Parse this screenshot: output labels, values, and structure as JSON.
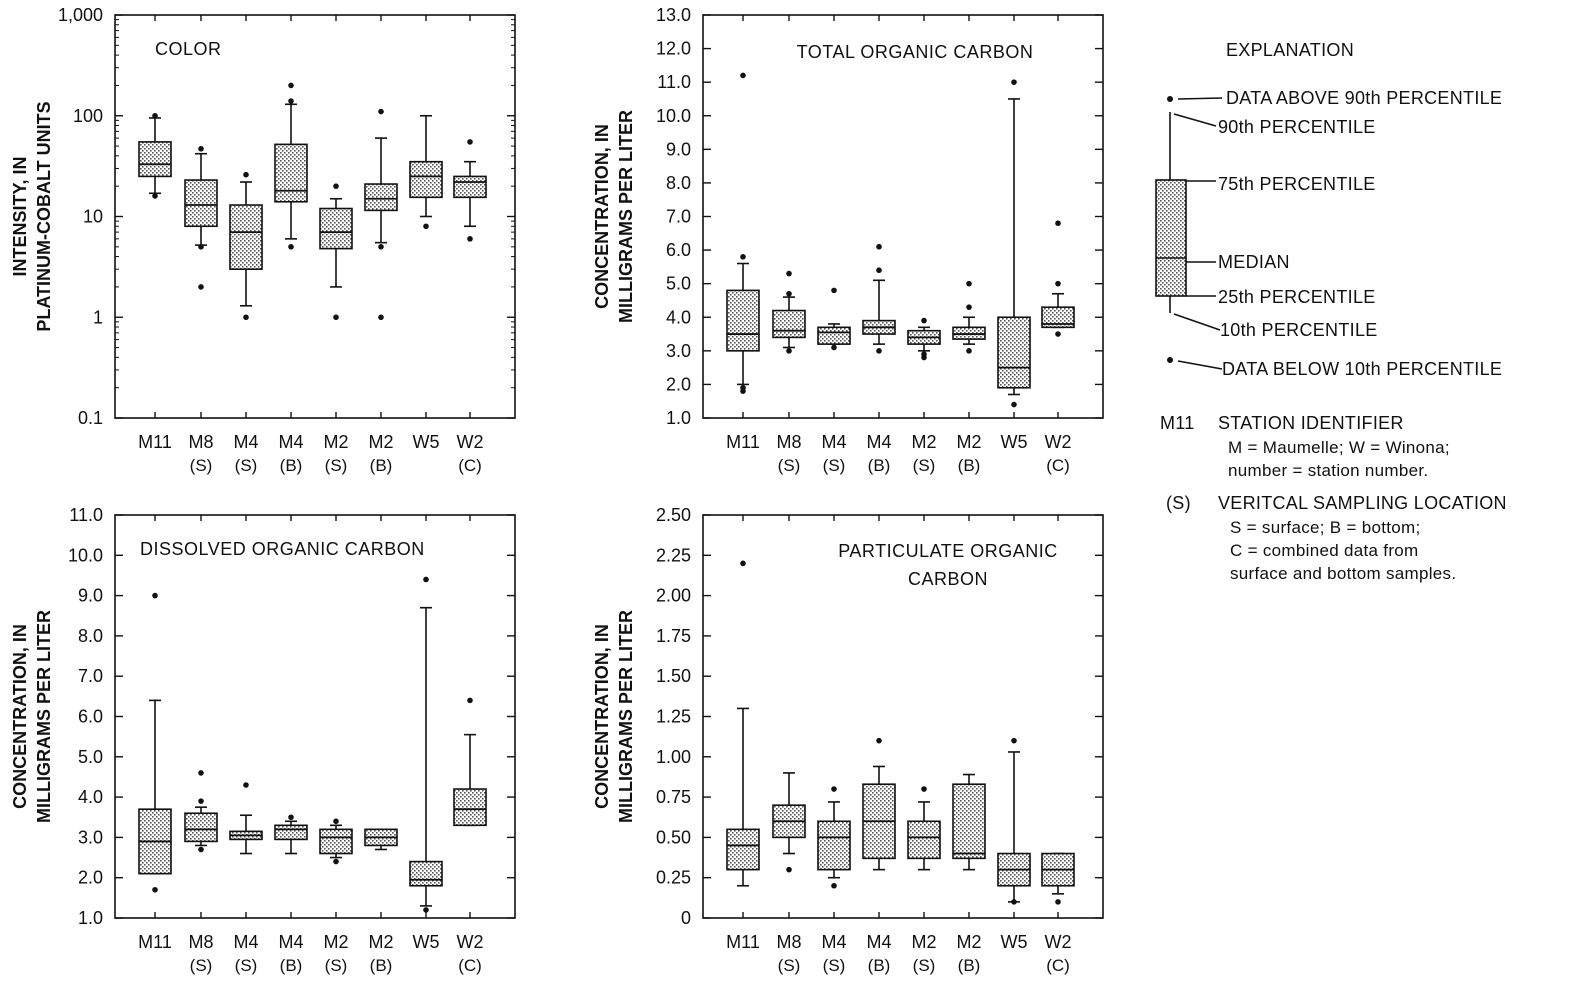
{
  "figure": {
    "ink_color": "#111111",
    "box_fill": "#cfcfcf",
    "panels": [
      {
        "id": "color",
        "title_lines": [
          "COLOR"
        ],
        "ylabel_lines": [
          "INTENSITY, IN",
          "PLATINUM-COBALT UNITS"
        ],
        "y_scale": "log",
        "ylim": [
          0.1,
          1000
        ],
        "y_ticks": [
          0.1,
          1,
          10,
          100,
          1000
        ],
        "y_tick_labels": [
          "0.1",
          "1",
          "10",
          "100",
          "1,000"
        ],
        "categories": [
          {
            "top": "M11",
            "bottom": ""
          },
          {
            "top": "M8",
            "bottom": "(S)"
          },
          {
            "top": "M4",
            "bottom": "(S)"
          },
          {
            "top": "M4",
            "bottom": "(B)"
          },
          {
            "top": "M2",
            "bottom": "(S)"
          },
          {
            "top": "M2",
            "bottom": "(B)"
          },
          {
            "top": "W5",
            "bottom": ""
          },
          {
            "top": "W2",
            "bottom": "(C)"
          }
        ],
        "boxes": [
          {
            "p10": 17,
            "q1": 25,
            "median": 33,
            "q3": 55,
            "p90": 95,
            "outliers": [
              16,
              100
            ]
          },
          {
            "p10": 5.2,
            "q1": 8,
            "median": 13,
            "q3": 23,
            "p90": 42,
            "outliers": [
              5,
              2,
              47
            ]
          },
          {
            "p10": 1.3,
            "q1": 3,
            "median": 7,
            "q3": 13,
            "p90": 22,
            "outliers": [
              1,
              26
            ]
          },
          {
            "p10": 6,
            "q1": 14,
            "median": 18,
            "q3": 52,
            "p90": 130,
            "outliers": [
              5,
              140,
              200
            ]
          },
          {
            "p10": 2,
            "q1": 4.8,
            "median": 7,
            "q3": 12,
            "p90": 15,
            "outliers": [
              1,
              20
            ]
          },
          {
            "p10": 5.5,
            "q1": 11.5,
            "median": 15,
            "q3": 21,
            "p90": 60,
            "outliers": [
              5,
              1,
              110
            ]
          },
          {
            "p10": 10,
            "q1": 15.5,
            "median": 25,
            "q3": 35,
            "p90": 100,
            "outliers": [
              8
            ]
          },
          {
            "p10": 8,
            "q1": 15.5,
            "median": 22,
            "q3": 25,
            "p90": 35,
            "outliers": [
              6,
              55
            ]
          }
        ]
      },
      {
        "id": "toc",
        "title_lines": [
          "TOTAL ORGANIC CARBON"
        ],
        "ylabel_lines": [
          "CONCENTRATION, IN",
          "MILLIGRAMS PER LITER"
        ],
        "y_scale": "linear",
        "ylim": [
          1.0,
          13.0
        ],
        "y_ticks": [
          1,
          2,
          3,
          4,
          5,
          6,
          7,
          8,
          9,
          10,
          11,
          12,
          13
        ],
        "y_tick_labels": [
          "1.0",
          "2.0",
          "3.0",
          "4.0",
          "5.0",
          "6.0",
          "7.0",
          "8.0",
          "9.0",
          "10.0",
          "11.0",
          "12.0",
          "13.0"
        ],
        "categories": [
          {
            "top": "M11",
            "bottom": ""
          },
          {
            "top": "M8",
            "bottom": "(S)"
          },
          {
            "top": "M4",
            "bottom": "(S)"
          },
          {
            "top": "M4",
            "bottom": "(B)"
          },
          {
            "top": "M2",
            "bottom": "(S)"
          },
          {
            "top": "M2",
            "bottom": "(B)"
          },
          {
            "top": "W5",
            "bottom": ""
          },
          {
            "top": "W2",
            "bottom": "(C)"
          }
        ],
        "boxes": [
          {
            "p10": 2.0,
            "q1": 3.0,
            "median": 3.5,
            "q3": 4.8,
            "p90": 5.6,
            "outliers": [
              1.8,
              1.9,
              11.2,
              5.8
            ]
          },
          {
            "p10": 3.1,
            "q1": 3.4,
            "median": 3.6,
            "q3": 4.2,
            "p90": 4.6,
            "outliers": [
              3.0,
              4.7,
              5.3
            ]
          },
          {
            "p10": 3.2,
            "q1": 3.2,
            "median": 3.55,
            "q3": 3.7,
            "p90": 3.8,
            "outliers": [
              3.1,
              4.8
            ]
          },
          {
            "p10": 3.2,
            "q1": 3.5,
            "median": 3.7,
            "q3": 3.9,
            "p90": 5.1,
            "outliers": [
              3.0,
              5.4,
              6.1
            ]
          },
          {
            "p10": 3.0,
            "q1": 3.2,
            "median": 3.4,
            "q3": 3.6,
            "p90": 3.7,
            "outliers": [
              2.8,
              2.9,
              3.9
            ]
          },
          {
            "p10": 3.2,
            "q1": 3.35,
            "median": 3.5,
            "q3": 3.7,
            "p90": 4.0,
            "outliers": [
              3.0,
              4.3,
              5.0
            ]
          },
          {
            "p10": 1.7,
            "q1": 1.9,
            "median": 2.5,
            "q3": 4.0,
            "p90": 10.5,
            "outliers": [
              1.4,
              11.0
            ]
          },
          {
            "p10": 3.7,
            "q1": 3.7,
            "median": 3.8,
            "q3": 4.3,
            "p90": 4.7,
            "outliers": [
              3.5,
              5.0,
              6.8
            ]
          }
        ]
      },
      {
        "id": "doc",
        "title_lines": [
          "DISSOLVED ORGANIC CARBON"
        ],
        "ylabel_lines": [
          "CONCENTRATION, IN",
          "MILLIGRAMS PER LITER"
        ],
        "y_scale": "linear",
        "ylim": [
          1.0,
          11.0
        ],
        "y_ticks": [
          1,
          2,
          3,
          4,
          5,
          6,
          7,
          8,
          9,
          10,
          11
        ],
        "y_tick_labels": [
          "1.0",
          "2.0",
          "3.0",
          "4.0",
          "5.0",
          "6.0",
          "7.0",
          "8.0",
          "9.0",
          "10.0",
          "11.0"
        ],
        "categories": [
          {
            "top": "M11",
            "bottom": ""
          },
          {
            "top": "M8",
            "bottom": "(S)"
          },
          {
            "top": "M4",
            "bottom": "(S)"
          },
          {
            "top": "M4",
            "bottom": "(B)"
          },
          {
            "top": "M2",
            "bottom": "(S)"
          },
          {
            "top": "M2",
            "bottom": "(B)"
          },
          {
            "top": "W5",
            "bottom": ""
          },
          {
            "top": "W2",
            "bottom": "(C)"
          }
        ],
        "boxes": [
          {
            "p10": 2.1,
            "q1": 2.1,
            "median": 2.9,
            "q3": 3.7,
            "p90": 6.4,
            "outliers": [
              1.7,
              9.0
            ]
          },
          {
            "p10": 2.8,
            "q1": 2.9,
            "median": 3.2,
            "q3": 3.6,
            "p90": 3.75,
            "outliers": [
              2.7,
              3.9,
              4.6
            ]
          },
          {
            "p10": 2.6,
            "q1": 2.95,
            "median": 3.05,
            "q3": 3.15,
            "p90": 3.55,
            "outliers": [
              4.3
            ]
          },
          {
            "p10": 2.6,
            "q1": 2.95,
            "median": 3.2,
            "q3": 3.3,
            "p90": 3.4,
            "outliers": [
              3.5
            ]
          },
          {
            "p10": 2.5,
            "q1": 2.6,
            "median": 3.0,
            "q3": 3.2,
            "p90": 3.3,
            "outliers": [
              2.4,
              3.4
            ]
          },
          {
            "p10": 2.7,
            "q1": 2.8,
            "median": 3.0,
            "q3": 3.2,
            "p90": 3.2,
            "outliers": []
          },
          {
            "p10": 1.3,
            "q1": 1.8,
            "median": 1.95,
            "q3": 2.4,
            "p90": 8.7,
            "outliers": [
              1.2,
              9.4
            ]
          },
          {
            "p10": 3.3,
            "q1": 3.3,
            "median": 3.7,
            "q3": 4.2,
            "p90": 5.55,
            "outliers": [
              6.4
            ]
          }
        ]
      },
      {
        "id": "poc",
        "title_lines": [
          "PARTICULATE ORGANIC",
          "CARBON"
        ],
        "ylabel_lines": [
          "CONCENTRATION, IN",
          "MILLIGRAMS PER LITER"
        ],
        "y_scale": "linear",
        "ylim": [
          0,
          2.5
        ],
        "y_ticks": [
          0,
          0.25,
          0.5,
          0.75,
          1.0,
          1.25,
          1.5,
          1.75,
          2.0,
          2.25,
          2.5
        ],
        "y_tick_labels": [
          "0",
          "0.25",
          "0.50",
          "0.75",
          "1.00",
          "1.25",
          "1.50",
          "1.75",
          "2.00",
          "2.25",
          "2.50"
        ],
        "categories": [
          {
            "top": "M11",
            "bottom": ""
          },
          {
            "top": "M8",
            "bottom": "(S)"
          },
          {
            "top": "M4",
            "bottom": "(S)"
          },
          {
            "top": "M4",
            "bottom": "(B)"
          },
          {
            "top": "M2",
            "bottom": "(S)"
          },
          {
            "top": "M2",
            "bottom": "(B)"
          },
          {
            "top": "W5",
            "bottom": ""
          },
          {
            "top": "W2",
            "bottom": "(C)"
          }
        ],
        "boxes": [
          {
            "p10": 0.2,
            "q1": 0.3,
            "median": 0.45,
            "q3": 0.55,
            "p90": 1.3,
            "outliers": [
              2.2
            ]
          },
          {
            "p10": 0.4,
            "q1": 0.5,
            "median": 0.6,
            "q3": 0.7,
            "p90": 0.9,
            "outliers": [
              0.3
            ]
          },
          {
            "p10": 0.25,
            "q1": 0.3,
            "median": 0.5,
            "q3": 0.6,
            "p90": 0.72,
            "outliers": [
              0.2,
              0.8
            ]
          },
          {
            "p10": 0.3,
            "q1": 0.37,
            "median": 0.6,
            "q3": 0.83,
            "p90": 0.94,
            "outliers": [
              1.1
            ]
          },
          {
            "p10": 0.3,
            "q1": 0.37,
            "median": 0.5,
            "q3": 0.6,
            "p90": 0.72,
            "outliers": [
              0.8
            ]
          },
          {
            "p10": 0.3,
            "q1": 0.37,
            "median": 0.4,
            "q3": 0.83,
            "p90": 0.89,
            "outliers": []
          },
          {
            "p10": 0.1,
            "q1": 0.2,
            "median": 0.3,
            "q3": 0.4,
            "p90": 1.03,
            "outliers": [
              0.1,
              1.1
            ]
          },
          {
            "p10": 0.15,
            "q1": 0.2,
            "median": 0.3,
            "q3": 0.4,
            "p90": 0.4,
            "outliers": [
              0.1
            ]
          }
        ]
      }
    ]
  },
  "chart_data": [
    {
      "type": "box",
      "title": "COLOR",
      "ylabel": "INTENSITY, IN PLATINUM-COBALT UNITS",
      "y_scale": "log",
      "ylim": [
        0.1,
        1000
      ],
      "categories": [
        "M11",
        "M8 (S)",
        "M4 (S)",
        "M4 (B)",
        "M2 (S)",
        "M2 (B)",
        "W5",
        "W2 (C)"
      ],
      "medians": [
        33,
        13,
        7,
        18,
        7,
        15,
        25,
        22
      ]
    },
    {
      "type": "box",
      "title": "TOTAL ORGANIC CARBON",
      "ylabel": "CONCENTRATION, IN MILLIGRAMS PER LITER",
      "ylim": [
        1.0,
        13.0
      ],
      "categories": [
        "M11",
        "M8 (S)",
        "M4 (S)",
        "M4 (B)",
        "M2 (S)",
        "M2 (B)",
        "W5",
        "W2 (C)"
      ],
      "medians": [
        3.5,
        3.6,
        3.55,
        3.7,
        3.4,
        3.5,
        2.5,
        3.8
      ]
    },
    {
      "type": "box",
      "title": "DISSOLVED ORGANIC CARBON",
      "ylabel": "CONCENTRATION, IN MILLIGRAMS PER LITER",
      "ylim": [
        1.0,
        11.0
      ],
      "categories": [
        "M11",
        "M8 (S)",
        "M4 (S)",
        "M4 (B)",
        "M2 (S)",
        "M2 (B)",
        "W5",
        "W2 (C)"
      ],
      "medians": [
        2.9,
        3.2,
        3.05,
        3.2,
        3.0,
        3.0,
        1.95,
        3.7
      ]
    },
    {
      "type": "box",
      "title": "PARTICULATE ORGANIC CARBON",
      "ylabel": "CONCENTRATION, IN MILLIGRAMS PER LITER",
      "ylim": [
        0,
        2.5
      ],
      "categories": [
        "M11",
        "M8 (S)",
        "M4 (S)",
        "M4 (B)",
        "M2 (S)",
        "M2 (B)",
        "W5",
        "W2 (C)"
      ],
      "medians": [
        0.45,
        0.6,
        0.5,
        0.6,
        0.5,
        0.4,
        0.3,
        0.3
      ]
    }
  ],
  "explanation": {
    "title": "EXPLANATION",
    "above_90": "DATA ABOVE 90th PERCENTILE",
    "p90": "90th PERCENTILE",
    "p75": "75th PERCENTILE",
    "median": "MEDIAN",
    "p25": "25th PERCENTILE",
    "p10": "10th PERCENTILE",
    "below_10": "DATA BELOW 10th PERCENTILE",
    "station_code": "M11",
    "station_title": "STATION IDENTIFIER",
    "station_line1": "M = Maumelle; W = Winona;",
    "station_line2": "number = station number.",
    "sampling_code": "(S)",
    "sampling_title": "VERITCAL SAMPLING LOCATION",
    "sampling_line1": "S = surface; B = bottom;",
    "sampling_line2": "C = combined data from",
    "sampling_line3": "surface and bottom samples."
  }
}
